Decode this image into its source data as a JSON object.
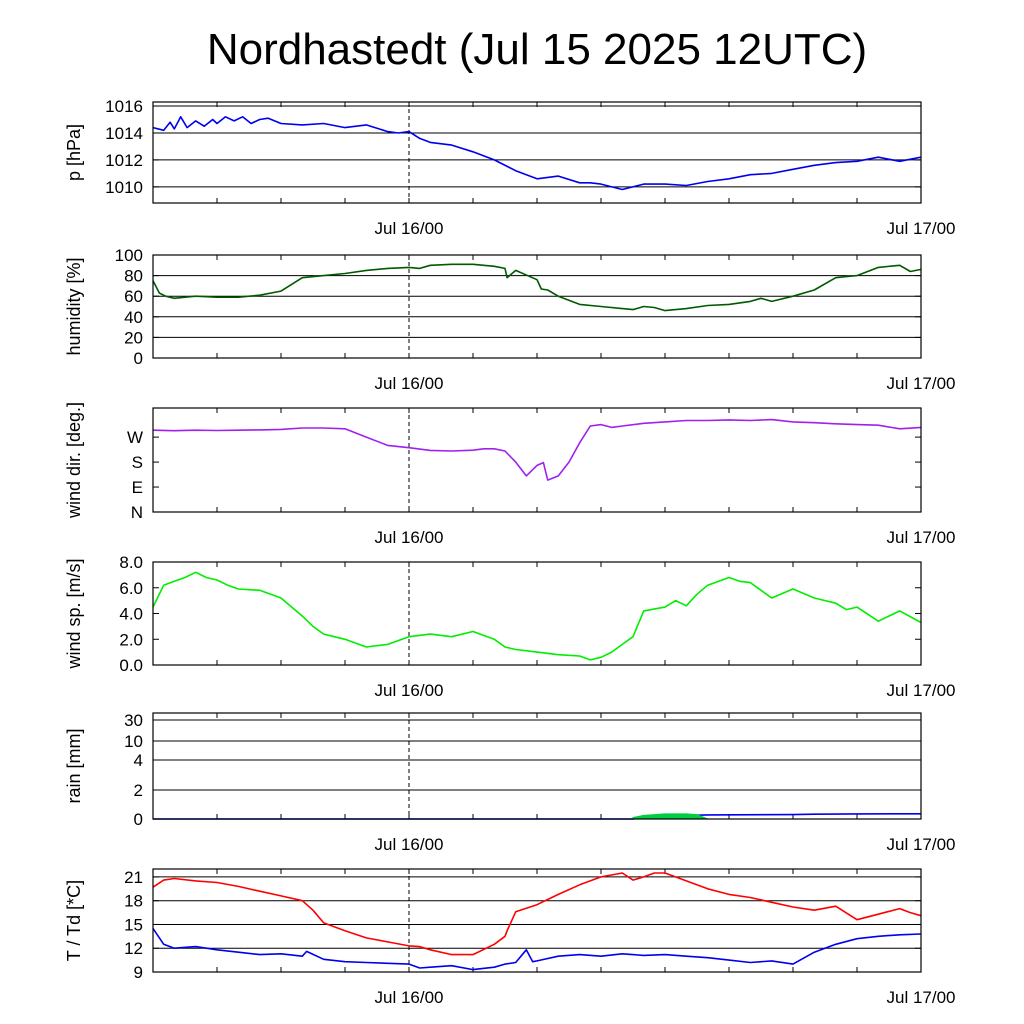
{
  "page": {
    "title": "Nordhastedt (Jul 15 2025 12UTC)"
  },
  "chart_data": [
    {
      "type": "line",
      "ylabel": "p [hPa]",
      "x_tick_labels": [
        "Jul 16/00",
        "Jul 17/00"
      ],
      "x_range_hours": [
        0,
        36
      ],
      "ylim": [
        1008.8,
        1016.3
      ],
      "y_ticks": [
        1010,
        1012,
        1014,
        1016
      ],
      "grid_lines": [
        1010,
        1012,
        1014,
        1016
      ],
      "series": [
        {
          "color": "#0000ee",
          "x": [
            0,
            0.5,
            0.8,
            1,
            1.3,
            1.6,
            2,
            2.4,
            2.8,
            3,
            3.4,
            3.8,
            4.2,
            4.6,
            5,
            5.4,
            6,
            7,
            8,
            9,
            10,
            11,
            11.5,
            12,
            12.5,
            13,
            14,
            15,
            16,
            17,
            18,
            19,
            20,
            20.5,
            21,
            22,
            23,
            24,
            25,
            26,
            27,
            28,
            29,
            30,
            31,
            32,
            33,
            34,
            35,
            36
          ],
          "y": [
            1014.4,
            1014.2,
            1014.8,
            1014.3,
            1015.2,
            1014.4,
            1014.9,
            1014.5,
            1015,
            1014.7,
            1015.2,
            1014.9,
            1015.2,
            1014.7,
            1015,
            1015.1,
            1014.7,
            1014.6,
            1014.7,
            1014.4,
            1014.6,
            1014.1,
            1014,
            1014.1,
            1013.6,
            1013.3,
            1013.1,
            1012.6,
            1012,
            1011.2,
            1010.6,
            1010.8,
            1010.3,
            1010.3,
            1010.2,
            1009.8,
            1010.2,
            1010.2,
            1010.1,
            1010.4,
            1010.6,
            1010.9,
            1011,
            1011.3,
            1011.6,
            1011.8,
            1011.9,
            1012.2,
            1011.9,
            1012.2
          ]
        }
      ]
    },
    {
      "type": "line",
      "ylabel": "humidity [%]",
      "x_tick_labels": [
        "Jul 16/00",
        "Jul 17/00"
      ],
      "x_range_hours": [
        0,
        36
      ],
      "ylim": [
        0,
        100
      ],
      "y_ticks": [
        0,
        20,
        40,
        60,
        80,
        100
      ],
      "grid_lines": [
        20,
        40,
        60,
        80
      ],
      "series": [
        {
          "color": "#005a00",
          "x": [
            0,
            0.3,
            0.6,
            1,
            1.5,
            2,
            3,
            4,
            5,
            6,
            7,
            8,
            9,
            10,
            11,
            12,
            12.5,
            13,
            14,
            15,
            16,
            16.5,
            16.6,
            17,
            18,
            18.2,
            18.5,
            19,
            20,
            21,
            22,
            22.5,
            23,
            23.5,
            24,
            25,
            26,
            27,
            28,
            28.5,
            29,
            30,
            31,
            32,
            32.5,
            33,
            34,
            35,
            35.5,
            36
          ],
          "y": [
            75,
            63,
            60,
            58,
            59,
            60,
            59,
            59,
            61,
            65,
            78,
            80,
            82,
            85,
            87,
            88,
            87,
            90,
            91,
            91,
            89,
            87,
            78,
            85,
            76,
            67,
            66,
            60,
            52,
            50,
            48,
            47,
            50,
            49,
            46,
            48,
            51,
            52,
            55,
            58,
            55,
            60,
            66,
            78,
            79,
            80,
            88,
            90,
            84,
            86
          ]
        }
      ]
    },
    {
      "type": "line",
      "ylabel": "wind dir. [deg.]",
      "x_tick_labels": [
        "Jul 16/00",
        "Jul 17/00"
      ],
      "x_range_hours": [
        0,
        36
      ],
      "ylim": [
        0,
        375
      ],
      "y_tick_labels": [
        "N",
        "E",
        "S",
        "W"
      ],
      "y_tick_values": [
        0,
        90,
        180,
        270
      ],
      "series": [
        {
          "color": "#a020f0",
          "x": [
            0,
            1,
            2,
            3,
            4,
            5,
            6,
            7,
            8,
            9,
            10,
            11,
            12,
            13,
            14,
            15,
            15.5,
            16,
            16.5,
            17,
            17.5,
            18,
            18.3,
            18.5,
            19,
            19.5,
            20,
            20.5,
            21,
            21.5,
            22,
            23,
            24,
            25,
            26,
            27,
            28,
            29,
            30,
            31,
            32,
            33,
            34,
            35,
            36
          ],
          "y": [
            295,
            293,
            295,
            294,
            295,
            296,
            298,
            303,
            303,
            300,
            270,
            240,
            232,
            222,
            220,
            223,
            228,
            228,
            220,
            180,
            130,
            168,
            178,
            115,
            130,
            180,
            250,
            310,
            315,
            305,
            310,
            320,
            325,
            330,
            330,
            332,
            330,
            333,
            325,
            322,
            318,
            315,
            313,
            300,
            305
          ]
        }
      ]
    },
    {
      "type": "line",
      "ylabel": "wind sp. [m/s]",
      "x_tick_labels": [
        "Jul 16/00",
        "Jul 17/00"
      ],
      "x_range_hours": [
        0,
        36
      ],
      "ylim": [
        0,
        8
      ],
      "y_ticks": [
        "0.0",
        "2.0",
        "4.0",
        "6.0",
        "8.0"
      ],
      "series": [
        {
          "color": "#00ee00",
          "x": [
            0,
            0.5,
            1,
            1.5,
            2,
            2.5,
            3,
            3.5,
            4,
            5,
            6,
            6.5,
            7,
            7.5,
            8,
            8.5,
            9,
            10,
            11,
            12,
            13,
            14,
            15,
            16,
            16.5,
            17,
            18,
            19,
            20,
            20.5,
            21,
            21.5,
            22,
            22.5,
            23,
            24,
            24.5,
            25,
            25.5,
            26,
            27,
            27.5,
            28,
            29,
            30,
            31,
            32,
            32.5,
            33,
            34,
            35,
            36
          ],
          "y": [
            4.5,
            6.2,
            6.5,
            6.8,
            7.2,
            6.8,
            6.6,
            6.2,
            5.9,
            5.8,
            5.2,
            4.5,
            3.8,
            3.0,
            2.4,
            2.2,
            2.0,
            1.4,
            1.6,
            2.2,
            2.4,
            2.2,
            2.6,
            2.0,
            1.4,
            1.2,
            1.0,
            0.8,
            0.7,
            0.4,
            0.6,
            1.0,
            1.6,
            2.2,
            4.2,
            4.5,
            5.0,
            4.6,
            5.5,
            6.2,
            6.8,
            6.5,
            6.4,
            5.2,
            5.9,
            5.2,
            4.8,
            4.3,
            4.5,
            3.4,
            4.2,
            3.3
          ]
        }
      ]
    },
    {
      "type": "area",
      "ylabel": "rain [mm]",
      "x_tick_labels": [
        "Jul 16/00",
        "Jul 17/00"
      ],
      "x_range_hours": [
        0,
        36
      ],
      "y_tick_labels": [
        "0",
        "2",
        "4",
        "10",
        "30"
      ],
      "y_tick_values": [
        0,
        2,
        4,
        10,
        30
      ],
      "grid_lines": [
        2,
        4,
        10,
        30
      ],
      "series": [
        {
          "color": "#0000ee",
          "x": [
            0,
            22.5,
            23,
            24,
            25,
            26,
            30,
            31,
            33,
            36
          ],
          "y": [
            0,
            0,
            0.1,
            0.2,
            0.25,
            0.28,
            0.3,
            0.33,
            0.35,
            0.36
          ]
        },
        {
          "color": "#00cc44",
          "x": [
            22.5,
            23,
            24,
            25,
            25.5,
            26
          ],
          "y": [
            0.1,
            0.25,
            0.35,
            0.35,
            0.3,
            0
          ]
        }
      ]
    },
    {
      "type": "line",
      "ylabel": "T / Td [*C]",
      "x_tick_labels": [
        "Jul 16/00",
        "Jul 17/00"
      ],
      "x_range_hours": [
        0,
        36
      ],
      "ylim": [
        9,
        22
      ],
      "y_ticks": [
        9,
        12,
        15,
        18,
        21
      ],
      "grid_lines": [
        12,
        15,
        18,
        21
      ],
      "series": [
        {
          "color": "#ff0000",
          "x": [
            0,
            0.5,
            1,
            2,
            3,
            4,
            5,
            6,
            7,
            7.5,
            8,
            9,
            10,
            11,
            12,
            12.5,
            13,
            14,
            15,
            16,
            16.5,
            16.6,
            17,
            18,
            19,
            20,
            21,
            22,
            22.5,
            23,
            23.5,
            24,
            25,
            26,
            27,
            28,
            29,
            30,
            31,
            32,
            33,
            34,
            35,
            35.5,
            36
          ],
          "y": [
            19.7,
            20.6,
            20.8,
            20.5,
            20.3,
            19.8,
            19.2,
            18.6,
            18.0,
            16.8,
            15.2,
            14.2,
            13.3,
            12.8,
            12.3,
            12.2,
            11.8,
            11.2,
            11.2,
            12.5,
            13.5,
            14.2,
            16.6,
            17.5,
            18.8,
            20.0,
            21.0,
            21.5,
            20.6,
            21.0,
            21.5,
            21.5,
            20.5,
            19.5,
            18.8,
            18.4,
            17.8,
            17.2,
            16.8,
            17.3,
            15.6,
            16.3,
            17.0,
            16.5,
            16.1
          ]
        },
        {
          "color": "#0000ee",
          "x": [
            0,
            0.5,
            1,
            2,
            3,
            4,
            5,
            6,
            7,
            7.2,
            8,
            9,
            10,
            11,
            12,
            12.5,
            13,
            14,
            15,
            16,
            16.5,
            17,
            17.5,
            17.8,
            18,
            19,
            20,
            21,
            22,
            23,
            24,
            25,
            26,
            27,
            28,
            29,
            30,
            31,
            32,
            33,
            34,
            35,
            36
          ],
          "y": [
            14.5,
            12.5,
            12.0,
            12.2,
            11.8,
            11.5,
            11.2,
            11.3,
            11.0,
            11.6,
            10.6,
            10.3,
            10.2,
            10.1,
            10.0,
            9.5,
            9.6,
            9.8,
            9.3,
            9.6,
            10.0,
            10.2,
            11.8,
            10.3,
            10.4,
            11.0,
            11.2,
            11.0,
            11.3,
            11.1,
            11.2,
            11.0,
            10.8,
            10.5,
            10.2,
            10.4,
            10.0,
            11.5,
            12.5,
            13.2,
            13.5,
            13.7,
            13.8
          ]
        }
      ]
    }
  ]
}
